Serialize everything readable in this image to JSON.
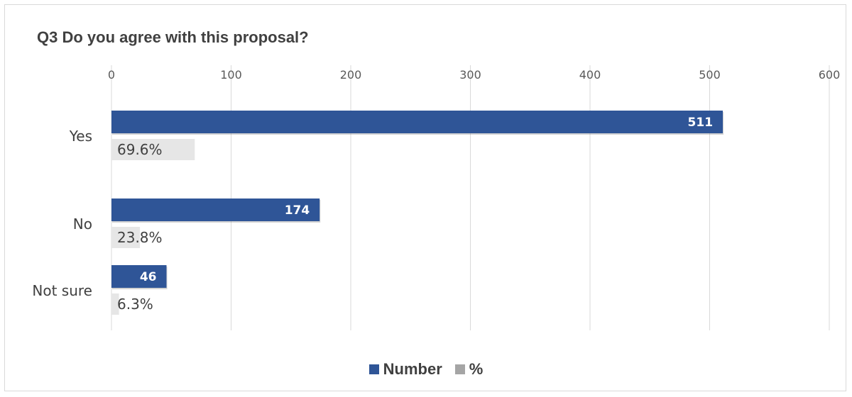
{
  "chart_data": {
    "type": "bar",
    "orientation": "horizontal",
    "title": "Q3 Do you agree with this proposal?",
    "categories": [
      "Yes",
      "No",
      "Not sure"
    ],
    "series": [
      {
        "name": "Number",
        "values": [
          511,
          174,
          46
        ],
        "color": "#2f5597"
      },
      {
        "name": "%",
        "values": [
          69.6,
          23.8,
          6.3
        ],
        "color": "#a5a5a5"
      }
    ],
    "number_labels": [
      "511",
      "174",
      "46"
    ],
    "percent_labels": [
      "69.6%",
      "23.8%",
      "6.3%"
    ],
    "x_ticks": [
      "0",
      "100",
      "200",
      "300",
      "400",
      "500",
      "600"
    ],
    "xlim": [
      0,
      600
    ],
    "x_axis_position": "top",
    "grid": true,
    "legend_position": "bottom"
  }
}
